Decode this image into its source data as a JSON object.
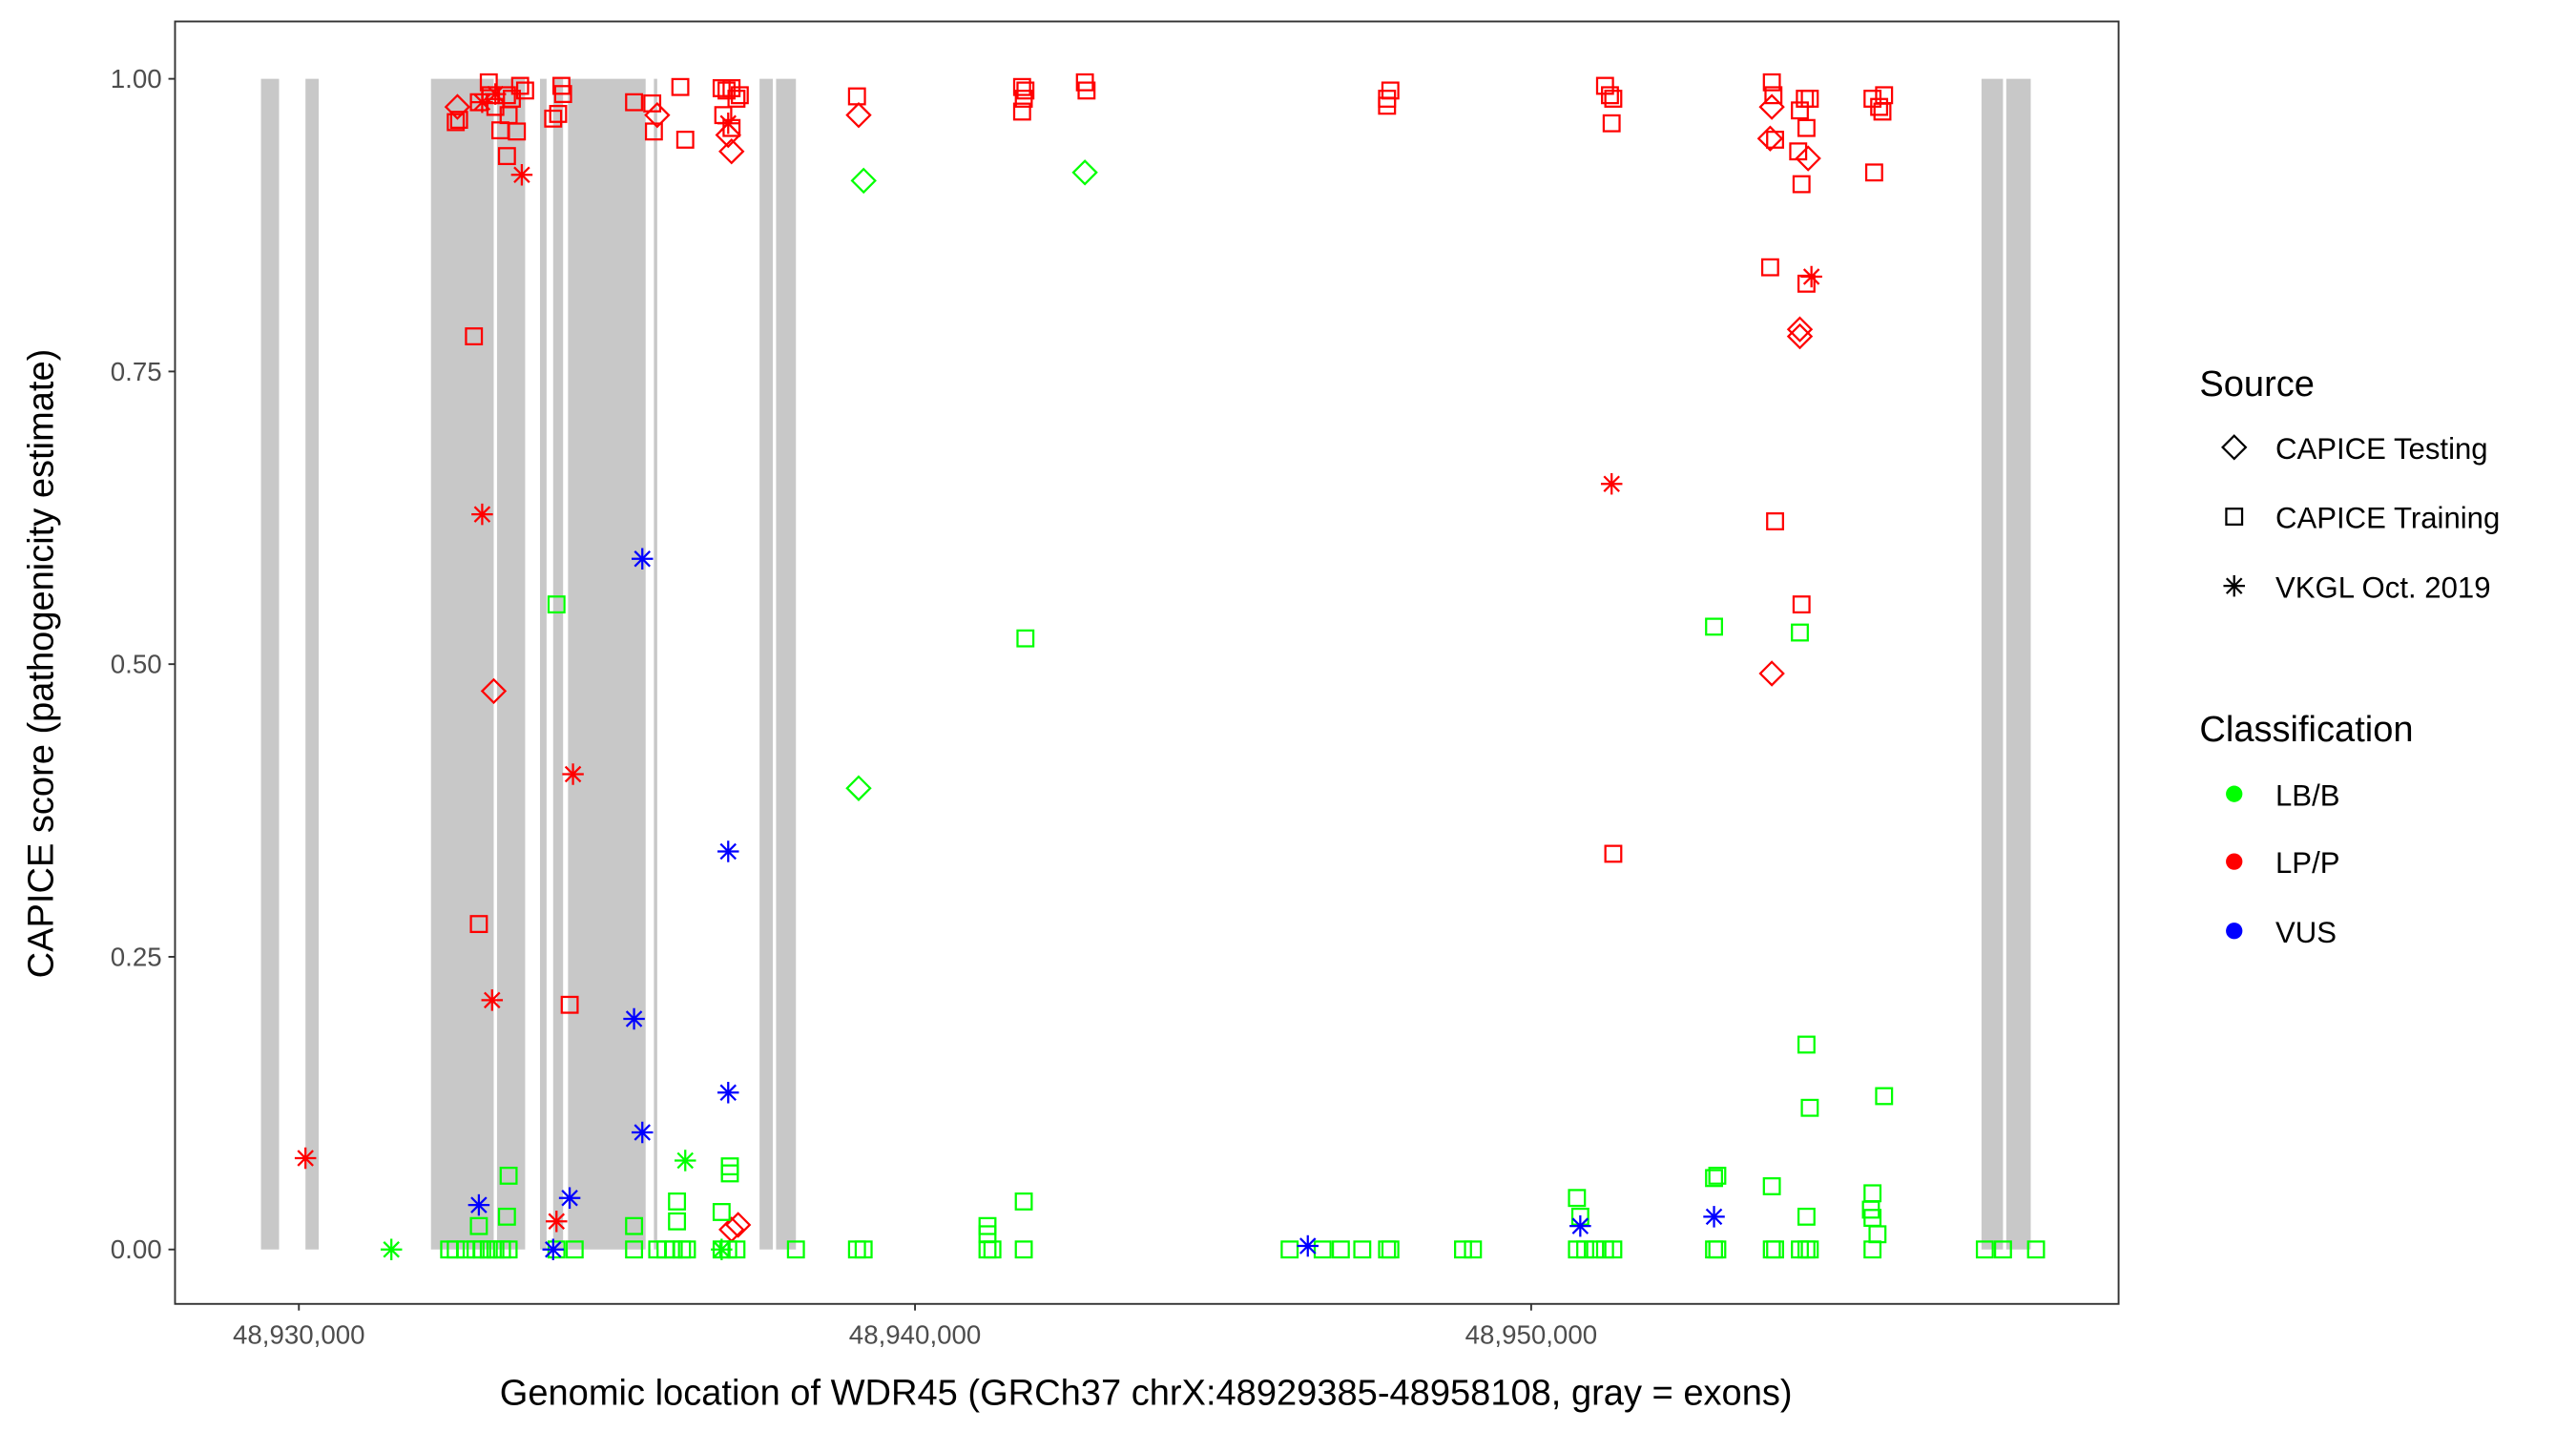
{
  "chart_data": {
    "type": "scatter",
    "xlabel": "Genomic location of WDR45 (GRCh37 chrX:48929385-48958108, gray = exons)",
    "ylabel": "CAPICE score (pathogenicity estimate)",
    "xlim": [
      48927990,
      48959534
    ],
    "ylim": [
      -0.0465,
      1.049
    ],
    "x_ticks": [
      48930000,
      48940000,
      48950000
    ],
    "x_tick_labels": [
      "48,930,000",
      "48,940,000",
      "48,950,000"
    ],
    "y_ticks": [
      0,
      0.25,
      0.5,
      0.75,
      1.0
    ],
    "y_tick_labels": [
      "0.00",
      "0.25",
      "0.50",
      "0.75",
      "1.00"
    ],
    "grid": false,
    "exon_band_y": [
      0,
      1
    ],
    "exon_color": "#c8c8c8",
    "exons": [
      [
        48929385,
        48929678
      ],
      [
        48930107,
        48930322
      ],
      [
        48932144,
        48933162
      ],
      [
        48933216,
        48933672
      ],
      [
        48933913,
        48934020
      ],
      [
        48934127,
        48934288
      ],
      [
        48934368,
        48935628
      ],
      [
        48935762,
        48935816
      ],
      [
        48937477,
        48937692
      ],
      [
        48937745,
        48938067
      ],
      [
        48957309,
        48957658
      ],
      [
        48957711,
        48958108
      ]
    ],
    "legend_position": "right",
    "legend": {
      "source_title": "Source",
      "sources": [
        {
          "label": "CAPICE Testing",
          "shape": "diamond"
        },
        {
          "label": "CAPICE Training",
          "shape": "square"
        },
        {
          "label": "VKGL Oct. 2019",
          "shape": "asterisk"
        }
      ],
      "class_title": "Classification",
      "classes": [
        {
          "label": "LB/B",
          "color": "#00ff00"
        },
        {
          "label": "LP/P",
          "color": "#ff0000"
        },
        {
          "label": "VUS",
          "color": "#0000ff"
        }
      ]
    },
    "point_fields": [
      "x",
      "score",
      "source_index",
      "class_index"
    ],
    "points": [
      [
        48932573,
        0.976,
        0,
        1
      ],
      [
        48932546,
        0.963,
        1,
        1
      ],
      [
        48932600,
        0.965,
        1,
        1
      ],
      [
        48932921,
        0.98,
        1,
        1
      ],
      [
        48932975,
        0.98,
        2,
        1
      ],
      [
        48933082,
        0.997,
        1,
        1
      ],
      [
        48933109,
        0.986,
        1,
        1
      ],
      [
        48933189,
        0.976,
        1,
        1
      ],
      [
        48933189,
        0.987,
        2,
        1
      ],
      [
        48933270,
        0.956,
        1,
        1
      ],
      [
        48933377,
        0.934,
        1,
        1
      ],
      [
        48933404,
        0.969,
        1,
        1
      ],
      [
        48933377,
        0.986,
        1,
        1
      ],
      [
        48933457,
        0.983,
        1,
        1
      ],
      [
        48933538,
        0.955,
        1,
        1
      ],
      [
        48933591,
        0.994,
        1,
        1
      ],
      [
        48933672,
        0.99,
        1,
        1
      ],
      [
        48933618,
        0.918,
        2,
        1
      ],
      [
        48934127,
        0.966,
        1,
        1
      ],
      [
        48934208,
        0.97,
        1,
        1
      ],
      [
        48934261,
        0.994,
        1,
        1
      ],
      [
        48934288,
        0.987,
        1,
        1
      ],
      [
        48935440,
        0.98,
        1,
        1
      ],
      [
        48935735,
        0.979,
        1,
        1
      ],
      [
        48935762,
        0.955,
        1,
        1
      ],
      [
        48935816,
        0.969,
        0,
        1
      ],
      [
        48936191,
        0.993,
        1,
        1
      ],
      [
        48936271,
        0.948,
        1,
        1
      ],
      [
        48936861,
        0.992,
        1,
        1
      ],
      [
        48936941,
        0.99,
        1,
        1
      ],
      [
        48937022,
        0.992,
        1,
        1
      ],
      [
        48937102,
        0.983,
        1,
        1
      ],
      [
        48937156,
        0.986,
        1,
        1
      ],
      [
        48936888,
        0.969,
        1,
        1
      ],
      [
        48937022,
        0.958,
        1,
        1
      ],
      [
        48936968,
        0.962,
        2,
        1
      ],
      [
        48936968,
        0.952,
        0,
        1
      ],
      [
        48937022,
        0.938,
        0,
        1
      ],
      [
        48939058,
        0.985,
        1,
        1
      ],
      [
        48939085,
        0.969,
        0,
        1
      ],
      [
        48941738,
        0.993,
        1,
        1
      ],
      [
        48941792,
        0.99,
        1,
        1
      ],
      [
        48941765,
        0.983,
        1,
        1
      ],
      [
        48941738,
        0.972,
        1,
        1
      ],
      [
        48942757,
        0.997,
        1,
        1
      ],
      [
        48942784,
        0.99,
        1,
        1
      ],
      [
        48947661,
        0.983,
        1,
        1
      ],
      [
        48947715,
        0.99,
        1,
        1
      ],
      [
        48947661,
        0.977,
        1,
        1
      ],
      [
        48951199,
        0.994,
        1,
        1
      ],
      [
        48951279,
        0.986,
        1,
        1
      ],
      [
        48951333,
        0.983,
        1,
        1
      ],
      [
        48951306,
        0.962,
        1,
        1
      ],
      [
        48953906,
        0.997,
        1,
        1
      ],
      [
        48953932,
        0.986,
        1,
        1
      ],
      [
        48953906,
        0.976,
        0,
        1
      ],
      [
        48953879,
        0.949,
        0,
        1
      ],
      [
        48953959,
        0.948,
        1,
        1
      ],
      [
        48954361,
        0.973,
        1,
        1
      ],
      [
        48954334,
        0.938,
        1,
        1
      ],
      [
        48954388,
        0.91,
        1,
        1
      ],
      [
        48954495,
        0.932,
        0,
        1
      ],
      [
        48954522,
        0.983,
        1,
        1
      ],
      [
        48954442,
        0.983,
        1,
        1
      ],
      [
        48954468,
        0.958,
        1,
        1
      ],
      [
        48955540,
        0.983,
        1,
        1
      ],
      [
        48955728,
        0.986,
        1,
        1
      ],
      [
        48955648,
        0.976,
        1,
        1
      ],
      [
        48955701,
        0.972,
        1,
        1
      ],
      [
        48955567,
        0.92,
        1,
        1
      ],
      [
        48953879,
        0.839,
        1,
        1
      ],
      [
        48954468,
        0.825,
        1,
        1
      ],
      [
        48954549,
        0.831,
        2,
        1
      ],
      [
        48954361,
        0.786,
        0,
        1
      ],
      [
        48954361,
        0.78,
        0,
        1
      ],
      [
        48951306,
        0.654,
        2,
        1
      ],
      [
        48953959,
        0.622,
        1,
        1
      ],
      [
        48954388,
        0.551,
        1,
        1
      ],
      [
        48953906,
        0.492,
        0,
        1
      ],
      [
        48951333,
        0.338,
        1,
        1
      ],
      [
        48932841,
        0.78,
        1,
        1
      ],
      [
        48932975,
        0.628,
        2,
        1
      ],
      [
        48933162,
        0.477,
        0,
        1
      ],
      [
        48934449,
        0.406,
        2,
        1
      ],
      [
        48932921,
        0.278,
        1,
        1
      ],
      [
        48933136,
        0.213,
        2,
        1
      ],
      [
        48934395,
        0.209,
        1,
        1
      ],
      [
        48930107,
        0.078,
        2,
        1
      ],
      [
        48934181,
        0.024,
        2,
        1
      ],
      [
        48937022,
        0.017,
        0,
        1
      ],
      [
        48937129,
        0.021,
        0,
        1
      ],
      [
        48939166,
        0.913,
        0,
        0
      ],
      [
        48942757,
        0.92,
        0,
        0
      ],
      [
        48934181,
        0.551,
        1,
        0
      ],
      [
        48941792,
        0.522,
        1,
        0
      ],
      [
        48939085,
        0.394,
        0,
        0
      ],
      [
        48952968,
        0.532,
        1,
        0
      ],
      [
        48954361,
        0.527,
        1,
        0
      ],
      [
        48954468,
        0.175,
        1,
        0
      ],
      [
        48954522,
        0.121,
        1,
        0
      ],
      [
        48955728,
        0.131,
        1,
        0
      ],
      [
        48933404,
        0.063,
        1,
        0
      ],
      [
        48933377,
        0.028,
        1,
        0
      ],
      [
        48936271,
        0.076,
        2,
        0
      ],
      [
        48936995,
        0.071,
        1,
        0
      ],
      [
        48936995,
        0.065,
        1,
        0
      ],
      [
        48936861,
        0.032,
        1,
        0
      ],
      [
        48936137,
        0.041,
        1,
        0
      ],
      [
        48936137,
        0.024,
        1,
        0
      ],
      [
        48941765,
        0.041,
        1,
        0
      ],
      [
        48941176,
        0.02,
        1,
        0
      ],
      [
        48941176,
        0.013,
        1,
        0
      ],
      [
        48950743,
        0.044,
        1,
        0
      ],
      [
        48950797,
        0.028,
        1,
        0
      ],
      [
        48953021,
        0.063,
        1,
        0
      ],
      [
        48952968,
        0.061,
        1,
        0
      ],
      [
        48953906,
        0.054,
        1,
        0
      ],
      [
        48954468,
        0.028,
        1,
        0
      ],
      [
        48955540,
        0.048,
        1,
        0
      ],
      [
        48955514,
        0.034,
        1,
        0
      ],
      [
        48955540,
        0.027,
        1,
        0
      ],
      [
        48955621,
        0.013,
        1,
        0
      ],
      [
        48935440,
        0.02,
        1,
        0
      ],
      [
        48932921,
        0.02,
        1,
        0
      ],
      [
        48931501,
        0,
        2,
        0
      ],
      [
        48936861,
        0,
        2,
        0
      ],
      [
        48932439,
        0,
        1,
        0
      ],
      [
        48932546,
        0,
        1,
        0
      ],
      [
        48932707,
        0,
        1,
        0
      ],
      [
        48932868,
        0,
        1,
        0
      ],
      [
        48932975,
        0,
        1,
        0
      ],
      [
        48933082,
        0,
        1,
        0
      ],
      [
        48933189,
        0,
        1,
        0
      ],
      [
        48933296,
        0,
        1,
        0
      ],
      [
        48933404,
        0,
        1,
        0
      ],
      [
        48934181,
        0,
        1,
        0
      ],
      [
        48934476,
        0,
        1,
        0
      ],
      [
        48935440,
        0,
        1,
        0
      ],
      [
        48935816,
        0,
        1,
        0
      ],
      [
        48935950,
        0,
        1,
        0
      ],
      [
        48936084,
        0,
        1,
        0
      ],
      [
        48936218,
        0,
        1,
        0
      ],
      [
        48936298,
        0,
        1,
        0
      ],
      [
        48936861,
        0,
        1,
        0
      ],
      [
        48936968,
        0,
        1,
        0
      ],
      [
        48937102,
        0,
        1,
        0
      ],
      [
        48938067,
        0,
        1,
        0
      ],
      [
        48939058,
        0,
        1,
        0
      ],
      [
        48939166,
        0,
        1,
        0
      ],
      [
        48941176,
        0,
        1,
        0
      ],
      [
        48941256,
        0,
        1,
        0
      ],
      [
        48941765,
        0,
        1,
        0
      ],
      [
        48946080,
        0,
        1,
        0
      ],
      [
        48946616,
        0,
        1,
        0
      ],
      [
        48946911,
        0,
        1,
        0
      ],
      [
        48947259,
        0,
        1,
        0
      ],
      [
        48947661,
        0,
        1,
        0
      ],
      [
        48947715,
        0,
        1,
        0
      ],
      [
        48948894,
        0,
        1,
        0
      ],
      [
        48949055,
        0,
        1,
        0
      ],
      [
        48950743,
        0,
        1,
        0
      ],
      [
        48950877,
        0,
        1,
        0
      ],
      [
        48951038,
        0,
        1,
        0
      ],
      [
        48951199,
        0,
        1,
        0
      ],
      [
        48951333,
        0,
        1,
        0
      ],
      [
        48952968,
        0,
        1,
        0
      ],
      [
        48953021,
        0,
        1,
        0
      ],
      [
        48953906,
        0,
        1,
        0
      ],
      [
        48953959,
        0,
        1,
        0
      ],
      [
        48954361,
        0,
        1,
        0
      ],
      [
        48954468,
        0,
        1,
        0
      ],
      [
        48954522,
        0,
        1,
        0
      ],
      [
        48955540,
        0,
        1,
        0
      ],
      [
        48957363,
        0,
        1,
        0
      ],
      [
        48957658,
        0,
        1,
        0
      ],
      [
        48958194,
        0,
        1,
        0
      ],
      [
        48935574,
        0.59,
        2,
        2
      ],
      [
        48936968,
        0.34,
        2,
        2
      ],
      [
        48935440,
        0.197,
        2,
        2
      ],
      [
        48936968,
        0.134,
        2,
        2
      ],
      [
        48935574,
        0.1,
        2,
        2
      ],
      [
        48934395,
        0.044,
        2,
        2
      ],
      [
        48932921,
        0.038,
        2,
        2
      ],
      [
        48934127,
        0.0,
        2,
        2
      ],
      [
        48946375,
        0.003,
        2,
        2
      ],
      [
        48950797,
        0.02,
        2,
        2
      ],
      [
        48952968,
        0.028,
        2,
        2
      ]
    ]
  }
}
